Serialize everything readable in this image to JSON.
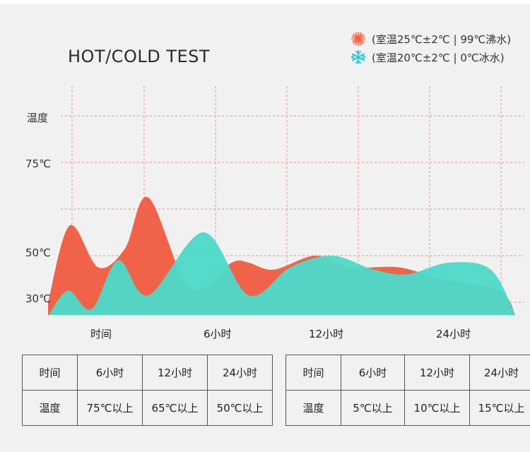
{
  "colors": {
    "hot": "#f0634a",
    "cold": "#4fd8c8",
    "grid": "#f08a8a",
    "background": "#f1f1f1"
  },
  "title": "HOT/COLD TEST",
  "legend": [
    {
      "icon": "sun-icon",
      "text": "(室温25℃±2℃ | 99℃沸水)"
    },
    {
      "icon": "snowflake-icon",
      "text": "(室温20℃±2℃ | 0℃冰水)"
    }
  ],
  "chart_data": {
    "type": "area",
    "title": "HOT/COLD TEST",
    "ylabel": "温度",
    "y_tick_labels": [
      "75℃",
      "50℃",
      "30℃"
    ],
    "x_tick_labels": [
      "时间",
      "6小时",
      "12小时",
      "24小时"
    ],
    "grid": true,
    "legend_position": "top-right",
    "series": [
      {
        "name": "(室温25℃±2℃ | 99℃沸水)",
        "color": "#f0634a",
        "x": [
          0,
          1.3,
          3,
          4.6,
          6,
          8.5,
          11,
          12,
          13.5,
          16,
          18,
          21,
          23.5,
          27,
          28
        ],
        "y": [
          30,
          63,
          45,
          53,
          75,
          36,
          47,
          47,
          44,
          50,
          45,
          45,
          40,
          35,
          24
        ]
      },
      {
        "name": "(室温20℃±2℃ | 0℃冰水)",
        "color": "#4fd8c8",
        "x": [
          0,
          1.2,
          2.6,
          4.2,
          6,
          9.3,
          12,
          14.5,
          17,
          19.5,
          21.5,
          24,
          26.5,
          28
        ],
        "y": [
          24,
          35,
          27,
          48,
          33,
          60,
          33,
          45,
          50,
          44,
          42,
          47,
          44,
          24
        ]
      }
    ]
  },
  "tables": [
    {
      "rows": [
        [
          "时间",
          "6小时",
          "12小时",
          "24小时"
        ],
        [
          "温度",
          "75℃以上",
          "65℃以上",
          "50℃以上"
        ]
      ]
    },
    {
      "rows": [
        [
          "时间",
          "6小时",
          "12小时",
          "24小时"
        ],
        [
          "温度",
          "5℃以上",
          "10℃以上",
          "15℃以上"
        ]
      ]
    }
  ]
}
